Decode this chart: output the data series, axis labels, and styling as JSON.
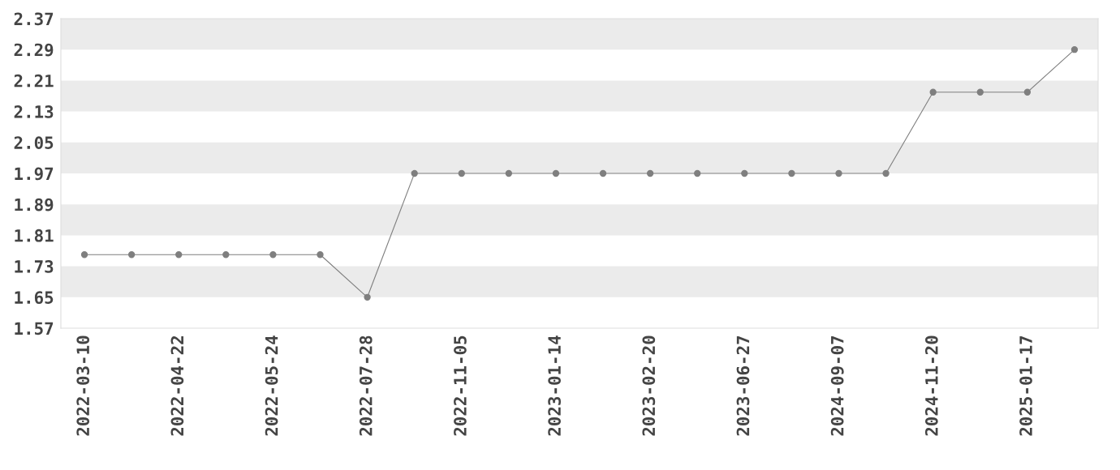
{
  "chart_data": {
    "type": "line",
    "categories": [
      "2022-03-10",
      null,
      "2022-04-22",
      null,
      "2022-05-24",
      null,
      "2022-07-28",
      null,
      "2022-11-05",
      null,
      "2023-01-14",
      null,
      "2023-02-20",
      null,
      "2023-06-27",
      null,
      "2024-09-07",
      null,
      "2024-11-20",
      null,
      "2025-01-17",
      null
    ],
    "series": [
      {
        "color": "#7f7f7f",
        "values": [
          1.76,
          1.76,
          1.76,
          1.76,
          1.76,
          1.76,
          1.65,
          1.97,
          1.97,
          1.97,
          1.97,
          1.97,
          1.97,
          1.97,
          1.97,
          1.97,
          1.97,
          1.97,
          2.18,
          2.18,
          2.18,
          2.29
        ]
      }
    ],
    "ylim": [
      1.57,
      2.37
    ],
    "yticks": [
      1.57,
      1.65,
      1.73,
      1.81,
      1.89,
      1.97,
      2.05,
      2.13,
      2.21,
      2.29,
      2.37
    ],
    "bands": [
      {
        "axis": "y",
        "from": 1.65,
        "to": 1.73,
        "color": "#ebebeb"
      },
      {
        "axis": "y",
        "from": 1.81,
        "to": 1.89,
        "color": "#ebebeb"
      },
      {
        "axis": "y",
        "from": 1.97,
        "to": 2.05,
        "color": "#ebebeb"
      },
      {
        "axis": "y",
        "from": 2.13,
        "to": 2.21,
        "color": "#ebebeb"
      },
      {
        "axis": "y",
        "from": 2.29,
        "to": 2.37,
        "color": "#ebebeb"
      }
    ],
    "marker": "circle",
    "line_style": "solid",
    "grid": false,
    "legend": false
  }
}
